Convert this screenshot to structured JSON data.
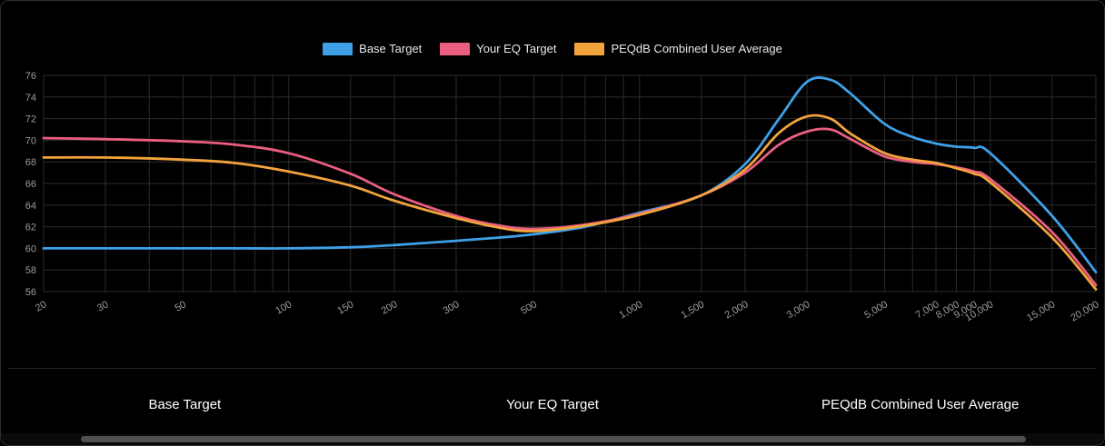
{
  "chart_data": {
    "type": "line",
    "title": "",
    "x_scale": "log",
    "xlim": [
      20,
      20000
    ],
    "ylim": [
      56,
      76
    ],
    "y_tick_step": 2,
    "grid": true,
    "legend_position": "top",
    "background": "#000000",
    "grid_color": "#2B2B2B",
    "tick_color": "#9C9C9C",
    "x": [
      20,
      30,
      50,
      70,
      100,
      150,
      200,
      300,
      400,
      500,
      700,
      1000,
      1500,
      2000,
      2500,
      3000,
      3500,
      4000,
      5000,
      6000,
      7000,
      8000,
      9000,
      10000,
      15000,
      20000
    ],
    "series": [
      {
        "name": "Base Target",
        "color": "#3FA0E8",
        "values": [
          60,
          60,
          60,
          60,
          60,
          60.1,
          60.3,
          60.7,
          61,
          61.3,
          62,
          63.3,
          64.9,
          67.8,
          72,
          75.4,
          75.6,
          74.3,
          71.5,
          70.3,
          69.7,
          69.4,
          69.3,
          68.8,
          63,
          57.8
        ]
      },
      {
        "name": "Your EQ Target",
        "color": "#EA5E7F",
        "values": [
          70.2,
          70.1,
          69.9,
          69.6,
          68.8,
          66.9,
          65,
          63,
          62.1,
          61.8,
          62.2,
          63.2,
          64.9,
          67,
          69.6,
          70.8,
          71,
          70.1,
          68.5,
          68,
          67.8,
          67.5,
          67.1,
          66.4,
          61.5,
          56.6
        ]
      },
      {
        "name": "PEQdB Combined User Average",
        "color": "#F2A33C",
        "values": [
          68.4,
          68.4,
          68.2,
          67.9,
          67.1,
          65.8,
          64.4,
          62.8,
          61.9,
          61.6,
          62.1,
          63.1,
          64.9,
          67.3,
          70.7,
          72.2,
          72,
          70.6,
          68.8,
          68.2,
          67.9,
          67.4,
          66.9,
          66.1,
          61,
          56.2
        ]
      }
    ],
    "x_ticks": [
      {
        "value": 20,
        "label": "20"
      },
      {
        "value": 30,
        "label": "30"
      },
      {
        "value": 50,
        "label": "50"
      },
      {
        "value": 100,
        "label": "100"
      },
      {
        "value": 150,
        "label": "150"
      },
      {
        "value": 200,
        "label": "200"
      },
      {
        "value": 300,
        "label": "300"
      },
      {
        "value": 500,
        "label": "500"
      },
      {
        "value": 1000,
        "label": "1,000"
      },
      {
        "value": 1500,
        "label": "1,500"
      },
      {
        "value": 2000,
        "label": "2,000"
      },
      {
        "value": 3000,
        "label": "3,000"
      },
      {
        "value": 5000,
        "label": "5,000"
      },
      {
        "value": 7000,
        "label": "7,000"
      },
      {
        "value": 8000,
        "label": "8,000"
      },
      {
        "value": 9000,
        "label": "9,000"
      },
      {
        "value": 10000,
        "label": "10,000"
      },
      {
        "value": 15000,
        "label": "15,000"
      },
      {
        "value": 20000,
        "label": "20,000"
      }
    ],
    "y_ticks": [
      56,
      58,
      60,
      62,
      64,
      66,
      68,
      70,
      72,
      74,
      76
    ],
    "x_gridlines": [
      20,
      30,
      40,
      50,
      60,
      70,
      80,
      90,
      100,
      150,
      200,
      300,
      400,
      500,
      600,
      700,
      800,
      900,
      1000,
      1500,
      2000,
      3000,
      4000,
      5000,
      6000,
      7000,
      8000,
      9000,
      10000,
      15000,
      20000
    ]
  },
  "footer": {
    "series_labels": [
      "Base Target",
      "Your EQ Target",
      "PEQdB Combined User Average"
    ]
  }
}
